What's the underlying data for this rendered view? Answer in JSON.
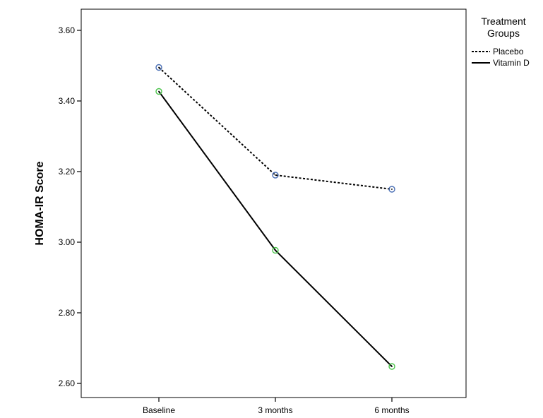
{
  "chart_data": {
    "type": "line",
    "title": "",
    "xlabel": "",
    "ylabel": "HOMA-IR Score",
    "categories": [
      "Baseline",
      "3 months",
      "6 months"
    ],
    "ylim": [
      2.56,
      3.66
    ],
    "yticks": [
      "2.60",
      "2.80",
      "3.00",
      "3.20",
      "3.40",
      "3.60"
    ],
    "grid": false,
    "legend": {
      "title_lines": [
        "Treatment",
        "Groups"
      ],
      "placement": "right"
    },
    "series": [
      {
        "name": "Placebo",
        "values": [
          3.495,
          3.19,
          3.15
        ],
        "line_style": "dotted",
        "marker_color": "#4a6fb5"
      },
      {
        "name": "Vitamin D",
        "values": [
          3.427,
          2.977,
          2.648
        ],
        "line_style": "solid",
        "marker_color": "#4cc44c"
      }
    ]
  }
}
